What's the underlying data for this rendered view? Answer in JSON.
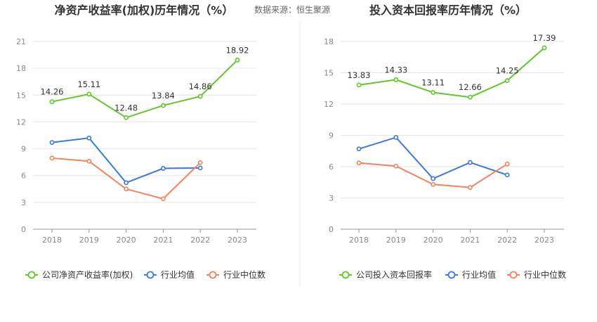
{
  "source_text": "数据来源：恒生聚源",
  "chart_data": [
    {
      "type": "line",
      "title": "净资产收益率(加权)历年情况（%）",
      "categories": [
        "2018",
        "2019",
        "2020",
        "2021",
        "2022",
        "2023"
      ],
      "y_ticks": [
        0,
        3,
        6,
        9,
        12,
        15,
        18,
        21
      ],
      "ylim": [
        0,
        21
      ],
      "grid": true,
      "legend_position": "bottom",
      "series": [
        {
          "name": "公司净资产收益率(加权)",
          "color": "#5ec82a",
          "labeled": true,
          "values": [
            14.26,
            15.11,
            12.48,
            13.84,
            14.86,
            18.92
          ],
          "labels": [
            "14.26",
            "15.11",
            "12.48",
            "13.84",
            "14.86",
            "18.92"
          ]
        },
        {
          "name": "行业均值",
          "color": "#3b78e0",
          "labeled": false,
          "values": [
            9.7,
            10.2,
            5.2,
            6.8,
            6.85,
            null
          ]
        },
        {
          "name": "行业中位数",
          "color": "#f0855d",
          "labeled": false,
          "values": [
            7.95,
            7.6,
            4.5,
            3.4,
            7.45,
            null
          ]
        }
      ]
    },
    {
      "type": "line",
      "title": "投入资本回报率历年情况（%）",
      "categories": [
        "2018",
        "2019",
        "2020",
        "2021",
        "2022",
        "2023"
      ],
      "y_ticks": [
        0,
        3,
        6,
        9,
        12,
        15,
        18
      ],
      "ylim": [
        0,
        18
      ],
      "grid": true,
      "legend_position": "bottom",
      "series": [
        {
          "name": "公司投入资本回报率",
          "color": "#5ec82a",
          "labeled": true,
          "values": [
            13.83,
            14.33,
            13.11,
            12.66,
            14.25,
            17.39
          ],
          "labels": [
            "13.83",
            "14.33",
            "13.11",
            "12.66",
            "14.25",
            "17.39"
          ]
        },
        {
          "name": "行业均值",
          "color": "#3b78e0",
          "labeled": false,
          "values": [
            7.7,
            8.8,
            4.85,
            6.4,
            5.2,
            null
          ]
        },
        {
          "name": "行业中位数",
          "color": "#f0855d",
          "labeled": false,
          "values": [
            6.35,
            6.05,
            4.3,
            4.0,
            6.25,
            null
          ]
        }
      ]
    }
  ]
}
